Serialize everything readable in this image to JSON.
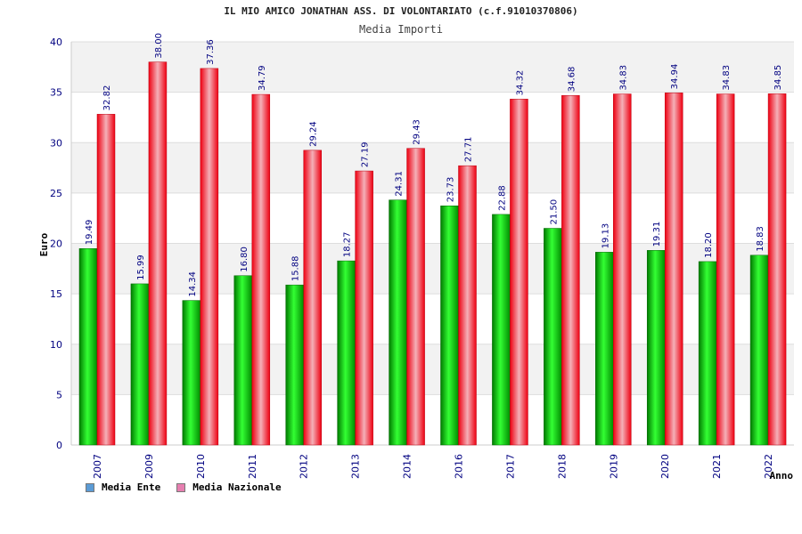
{
  "chart_data": {
    "type": "bar",
    "title": "IL MIO AMICO JONATHAN ASS. DI VOLONTARIATO (c.f.91010370806)",
    "subtitle": "Media Importi",
    "xlabel": "Anno",
    "ylabel": "Euro",
    "ylim": [
      0,
      40
    ],
    "yticks": [
      0,
      5,
      10,
      15,
      20,
      25,
      30,
      35,
      40
    ],
    "grid": true,
    "legend_position": "bottom-left",
    "categories": [
      "2007",
      "2009",
      "2010",
      "2011",
      "2012",
      "2013",
      "2014",
      "2016",
      "2017",
      "2018",
      "2019",
      "2020",
      "2021",
      "2022"
    ],
    "series": [
      {
        "name": "Media Ente",
        "values": [
          19.49,
          15.99,
          14.34,
          16.8,
          15.88,
          18.27,
          24.31,
          23.73,
          22.88,
          21.5,
          19.13,
          19.31,
          18.2,
          18.83
        ],
        "labels": [
          "19.49",
          "15.99",
          "14.34",
          "16.80",
          "15.88",
          "18.27",
          "24.31",
          "23.73",
          "22.88",
          "21.50",
          "19.13",
          "19.31",
          "18.20",
          "18.83"
        ],
        "color": "#00b000",
        "legend_color": "#5b9bd5"
      },
      {
        "name": "Media Nazionale",
        "values": [
          32.82,
          38.0,
          37.36,
          34.79,
          29.24,
          27.19,
          29.43,
          27.71,
          34.32,
          34.68,
          34.83,
          34.94,
          34.83,
          34.85
        ],
        "labels": [
          "32.82",
          "38.00",
          "37.36",
          "34.79",
          "29.24",
          "27.19",
          "29.43",
          "27.71",
          "34.32",
          "34.68",
          "34.83",
          "34.94",
          "34.83",
          "34.85"
        ],
        "color": "#ee1122",
        "legend_color": "#e67fb0"
      }
    ]
  }
}
